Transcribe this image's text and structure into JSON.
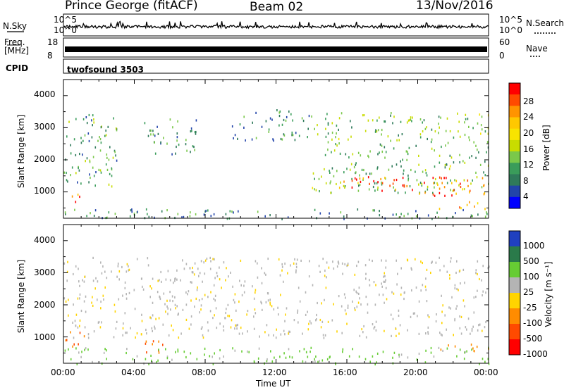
{
  "header": {
    "station": "Prince George (fitACF)",
    "beam": "Beam 02",
    "date": "13/Nov/2016"
  },
  "top_panels": {
    "nsky": {
      "label": "N.Sky",
      "ticks": [
        "10^5",
        "10^0"
      ]
    },
    "nsearch": {
      "label": "N.Search",
      "ticks": [
        "10^5",
        "10^0"
      ]
    },
    "freq": {
      "label": "Freq.",
      "unit": "[MHz]",
      "ticks": [
        "18",
        "8"
      ]
    },
    "nave": {
      "label": "Nave",
      "ticks": [
        "60",
        "0"
      ]
    },
    "cpid": {
      "label": "CPID",
      "value": "twofsound 3503"
    }
  },
  "colorbars": {
    "power": {
      "label": "Power [dB]",
      "ticks": [
        "28",
        "24",
        "20",
        "16",
        "12",
        "8",
        "4"
      ],
      "colors": [
        "#ff0000",
        "#ff4a00",
        "#ff9400",
        "#ffc800",
        "#f8e400",
        "#c8dc00",
        "#7ac84a",
        "#3a9c5a",
        "#2f7a5a",
        "#2244aa",
        "#0000ff"
      ]
    },
    "velocity": {
      "label": "Velocity [m s⁻¹]",
      "ticks": [
        "1000",
        "500",
        "100",
        "25",
        "-25",
        "-100",
        "-500",
        "-1000"
      ],
      "colors": [
        "#2040c0",
        "#2a7a4a",
        "#66cc33",
        "#b4b4b4",
        "#ffd400",
        "#ff8c00",
        "#ff4a00",
        "#ff0000"
      ]
    }
  },
  "axis": {
    "xlabel": "Time UT",
    "ylabel_km": "Slant Range [km]"
  },
  "chart_data": [
    {
      "type": "heatmap",
      "title": "Power",
      "xlabel": "Time UT",
      "ylabel": "Slant Range [km]",
      "x_ticks": [
        "00:00",
        "04:00",
        "08:00",
        "12:00",
        "16:00",
        "20:00",
        "00:00"
      ],
      "y_ticks": [
        1000,
        2000,
        3000,
        4000
      ],
      "xlim_hours": [
        0,
        24
      ],
      "ylim_km": [
        180,
        4500
      ],
      "colorbar": {
        "label": "Power [dB]",
        "ticks": [
          4,
          8,
          12,
          16,
          20,
          24,
          28
        ]
      },
      "echo_regions": [
        {
          "t": [
            0.0,
            1.0
          ],
          "r": [
            600,
            1000
          ],
          "power_db": 28
        },
        {
          "t": [
            0.0,
            3.0
          ],
          "r": [
            1000,
            3500
          ],
          "power_db": 10
        },
        {
          "t": [
            4.5,
            7.5
          ],
          "r": [
            2200,
            3300
          ],
          "power_db": 8
        },
        {
          "t": [
            9.5,
            14.0
          ],
          "r": [
            2600,
            3600
          ],
          "power_db": 8
        },
        {
          "t": [
            14.0,
            24.0
          ],
          "r": [
            1000,
            3500
          ],
          "power_db": 12
        },
        {
          "t": [
            15.5,
            24.0
          ],
          "r": [
            900,
            1500
          ],
          "power_db": 28
        },
        {
          "t": [
            21.0,
            24.0
          ],
          "r": [
            500,
            800
          ],
          "power_db": 26
        },
        {
          "t": [
            0.0,
            24.0
          ],
          "r": [
            180,
            500
          ],
          "power_db": 8
        }
      ]
    },
    {
      "type": "heatmap",
      "title": "Velocity",
      "xlabel": "Time UT",
      "ylabel": "Slant Range [km]",
      "x_ticks": [
        "00:00",
        "04:00",
        "08:00",
        "12:00",
        "16:00",
        "20:00",
        "00:00"
      ],
      "y_ticks": [
        1000,
        2000,
        3000,
        4000
      ],
      "xlim_hours": [
        0,
        24
      ],
      "ylim_km": [
        180,
        4500
      ],
      "colorbar": {
        "label": "Velocity [m s⁻¹]",
        "ticks": [
          1000,
          500,
          100,
          25,
          -25,
          -100,
          -500,
          -1000
        ]
      },
      "echo_regions": [
        {
          "t": [
            0.0,
            1.2
          ],
          "r": [
            600,
            1300
          ],
          "velocity": -300
        },
        {
          "t": [
            4.5,
            6.0
          ],
          "r": [
            500,
            900
          ],
          "velocity": -300
        },
        {
          "t": [
            0.0,
            24.0
          ],
          "r": [
            1000,
            3500
          ],
          "velocity": 0
        },
        {
          "t": [
            0.0,
            24.0
          ],
          "r": [
            180,
            700
          ],
          "velocity": 80
        },
        {
          "t": [
            21.0,
            24.0
          ],
          "r": [
            500,
            800
          ],
          "velocity": -150
        }
      ]
    }
  ]
}
